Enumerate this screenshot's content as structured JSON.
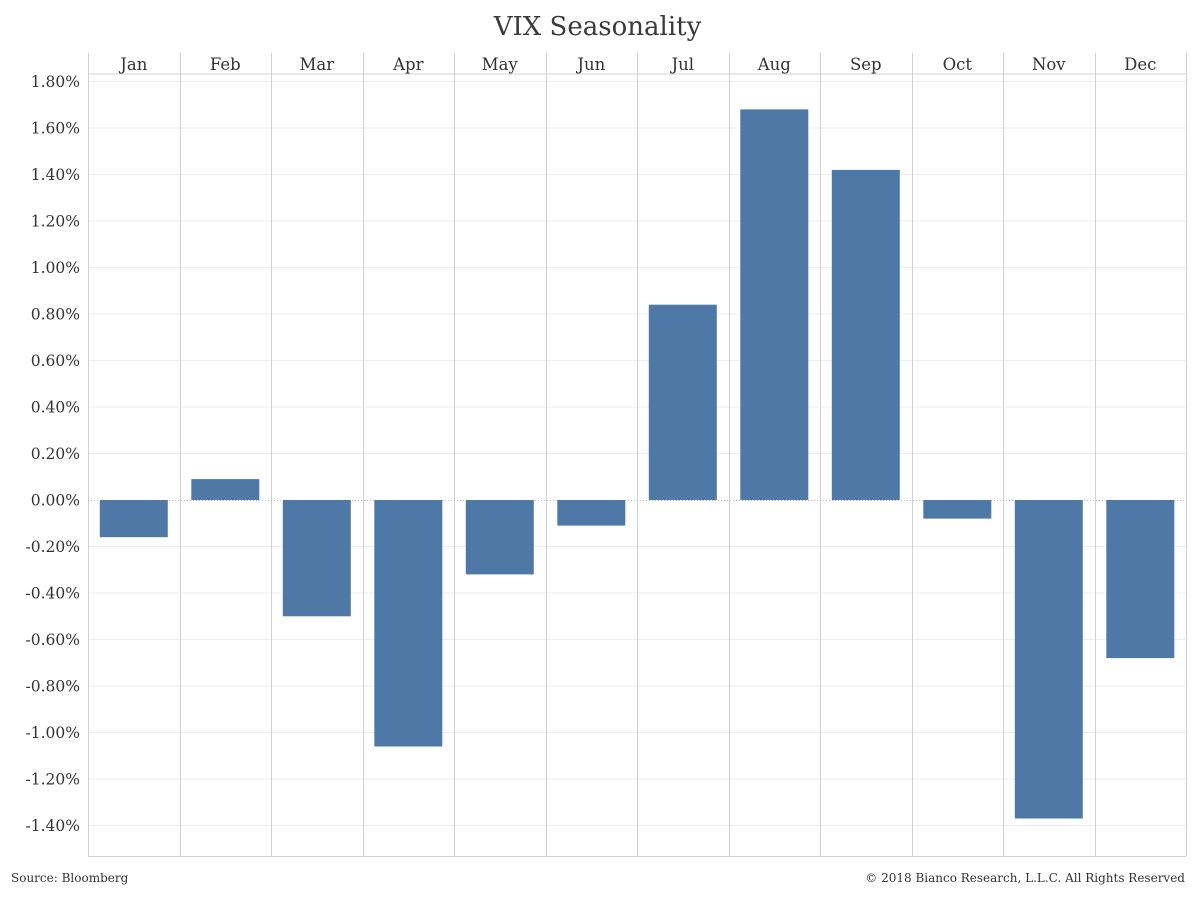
{
  "footer": {
    "source": "Source: Bloomberg",
    "copyright": "© 2018 Bianco Research, L.L.C. All Rights Reserved"
  },
  "colors": {
    "bar": "#4e79a7",
    "divider": "#d0d0d0",
    "gridline": "#ececec",
    "zero_line": "#b8b8b8"
  },
  "chart_data": {
    "type": "bar",
    "title": "VIX Seasonality",
    "xlabel": "",
    "ylabel": "",
    "categories": [
      "Jan",
      "Feb",
      "Mar",
      "Apr",
      "May",
      "Jun",
      "Jul",
      "Aug",
      "Sep",
      "Oct",
      "Nov",
      "Dec"
    ],
    "values": [
      -0.16,
      0.09,
      -0.5,
      -1.06,
      -0.32,
      -0.11,
      0.84,
      1.68,
      1.42,
      -0.08,
      -1.37,
      -0.68
    ],
    "value_unit": "%",
    "ylim": [
      -1.5,
      1.9
    ],
    "yticks": [
      1.8,
      1.6,
      1.4,
      1.2,
      1.0,
      0.8,
      0.6,
      0.4,
      0.2,
      0.0,
      -0.2,
      -0.4,
      -0.6,
      -0.8,
      -1.0,
      -1.2,
      -1.4
    ],
    "ytick_labels": [
      "1.80%",
      "1.60%",
      "1.40%",
      "1.20%",
      "1.00%",
      "0.80%",
      "0.60%",
      "0.40%",
      "0.20%",
      "0.00%",
      "-0.20%",
      "-0.40%",
      "-0.60%",
      "-0.80%",
      "-1.00%",
      "-1.20%",
      "-1.40%"
    ],
    "category_labels_position": "top",
    "grid": true,
    "legend": "none"
  }
}
